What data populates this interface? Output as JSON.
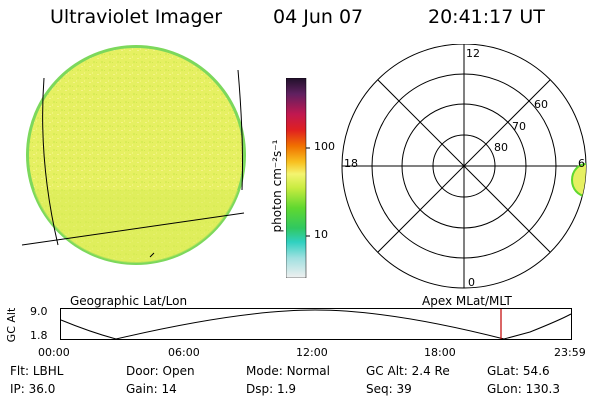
{
  "header": {
    "instrument": "Ultraviolet Imager",
    "date": "04 Jun 07",
    "time": "20:41:17 UT"
  },
  "colorbar": {
    "unit_label": "photon cm⁻²s⁻¹",
    "ticks": [
      "100",
      "10"
    ]
  },
  "polar": {
    "mlt_labels": [
      "12",
      "18",
      "6",
      "0"
    ],
    "lat_labels": [
      "60",
      "70",
      "80"
    ]
  },
  "timeline": {
    "left_title": "Geographic Lat/Lon",
    "right_title": "Apex MLat/MLT",
    "y_axis_label": "GC Alt",
    "y_ticks": [
      "9.0",
      "1.8"
    ],
    "x_ticks": [
      "00:00",
      "06:00",
      "12:00",
      "18:00",
      "23:59"
    ],
    "current_marker_time": "20:41",
    "marker_color": "#c00000"
  },
  "status": {
    "row1": [
      {
        "key": "Flt:",
        "value": "LBHL"
      },
      {
        "key": "Door:",
        "value": "Open"
      },
      {
        "key": "Mode:",
        "value": "Normal"
      },
      {
        "key": "GC Alt:",
        "value": "2.4 Re"
      },
      {
        "key": "GLat:",
        "value": "54.6"
      }
    ],
    "row2": [
      {
        "key": "IP:",
        "value": "36.0"
      },
      {
        "key": "Gain:",
        "value": "14"
      },
      {
        "key": "Dsp:",
        "value": "1.9"
      },
      {
        "key": "Seq:",
        "value": "39"
      },
      {
        "key": "GLon:",
        "value": "130.3"
      }
    ]
  },
  "colors": {
    "disk_fill": "#e4f060",
    "disk_rim": "#7cd85c"
  }
}
